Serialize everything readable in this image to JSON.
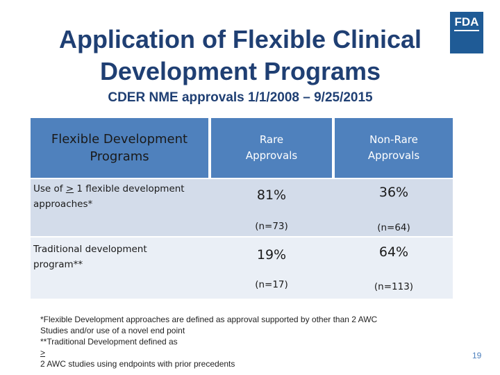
{
  "slide": {
    "title_line1": "Application of Flexible Clinical",
    "title_line2": "Development Programs",
    "subtitle": "CDER NME approvals 1/1/2008 – 9/25/2015",
    "logo_text": "FDA",
    "page_number": "19"
  },
  "table": {
    "headers": {
      "col1": "Flexible Development Programs",
      "col2": "Rare Approvals",
      "col3": "Non-Rare Approvals"
    },
    "rows": [
      {
        "label_prefix": "Use of ",
        "label_ge": ">",
        "label_suffix": " 1 flexible development approaches*",
        "rare_pct": "81%",
        "rare_n": "(n=73)",
        "nonrare_pct": "36%",
        "nonrare_n": "(n=64)"
      },
      {
        "label": "Traditional development program**",
        "rare_pct": "19%",
        "rare_n": "(n=17)",
        "nonrare_pct": "64%",
        "nonrare_n": "(n=113)"
      }
    ]
  },
  "footnotes": {
    "line1": "*Flexible Development approaches are defined as approval supported by other than 2 AWC",
    "line2": "Studies and/or use of a novel end point",
    "line3_prefix": "**Traditional Development defined as ",
    "line3_ge": ">",
    "line3_suffix": "2 AWC studies using endpoints with prior precedents"
  },
  "colors": {
    "title": "#1f3f73",
    "header_bg": "#4f81bd",
    "row1_bg": "#d3dcea",
    "row2_bg": "#eaeff6",
    "logo_bg": "#1f5b96"
  }
}
